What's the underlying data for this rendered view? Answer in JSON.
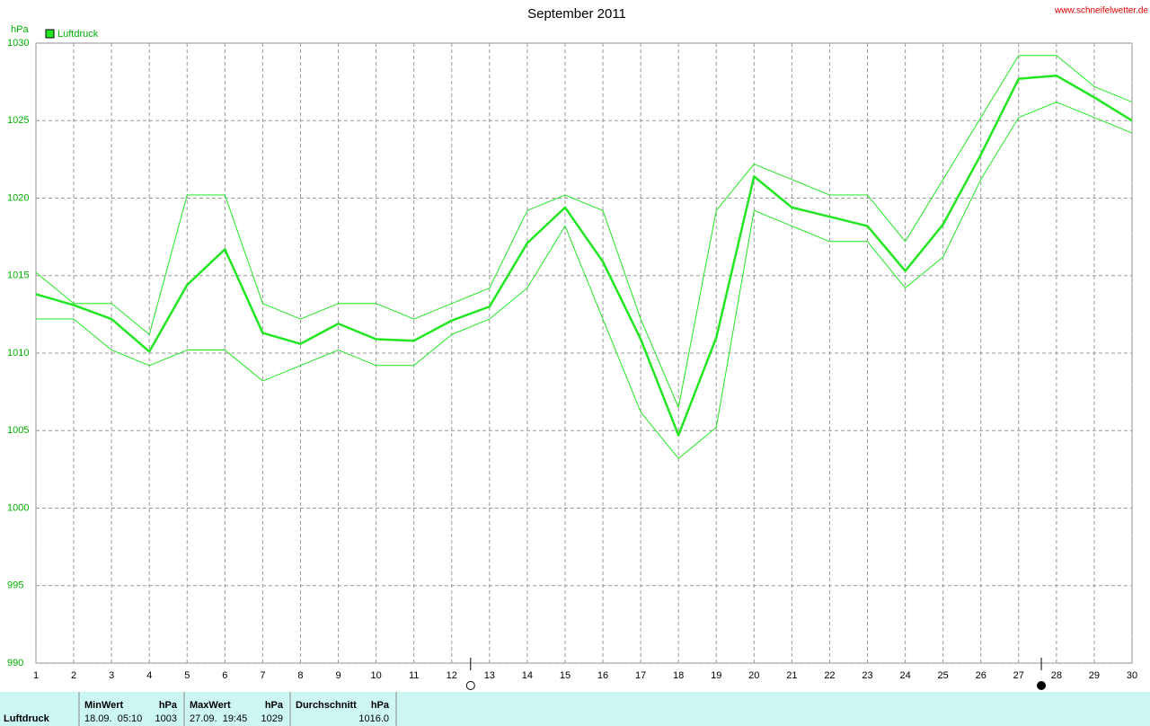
{
  "chart_data": {
    "type": "line",
    "title": "September 2011",
    "source": "www.schneifelwetter.de",
    "y_label": "hPa",
    "x": [
      1,
      2,
      3,
      4,
      5,
      6,
      7,
      8,
      9,
      10,
      11,
      12,
      13,
      14,
      15,
      16,
      17,
      18,
      19,
      20,
      21,
      22,
      23,
      24,
      25,
      26,
      27,
      28,
      29,
      30
    ],
    "xlim": [
      1,
      30
    ],
    "xticks": [
      1,
      2,
      3,
      4,
      5,
      6,
      7,
      8,
      9,
      10,
      11,
      12,
      13,
      14,
      15,
      16,
      17,
      18,
      19,
      20,
      21,
      22,
      23,
      24,
      25,
      26,
      27,
      28,
      29,
      30
    ],
    "ylim": [
      990,
      1030
    ],
    "yticks": [
      990,
      995,
      1000,
      1005,
      1010,
      1015,
      1020,
      1025,
      1030
    ],
    "grid": true,
    "legend": "top-left",
    "series": [
      {
        "name": "Luftdruck",
        "color": "#22e622",
        "width": 2.5,
        "values": [
          1013.8,
          1013.1,
          1012.2,
          1010.1,
          1014.4,
          1016.7,
          1011.3,
          1010.6,
          1011.9,
          1010.9,
          1010.8,
          1012.1,
          1013.0,
          1017.1,
          1019.4,
          1015.9,
          1010.9,
          1004.7,
          1011.0,
          1021.4,
          1019.4,
          1018.8,
          1018.2,
          1015.3,
          1018.3,
          1022.8,
          1027.7,
          1027.9,
          1026.5,
          1025.0
        ]
      },
      {
        "color": "#22e622",
        "width": 1,
        "values": [
          1015.2,
          1013.2,
          1013.2,
          1011.2,
          1020.2,
          1020.2,
          1013.2,
          1012.2,
          1013.2,
          1013.2,
          1012.2,
          1013.2,
          1014.2,
          1019.2,
          1020.2,
          1019.2,
          1012.2,
          1006.5,
          1019.2,
          1022.2,
          1021.2,
          1020.2,
          1020.2,
          1017.2,
          1021.2,
          1025.2,
          1029.2,
          1029.2,
          1027.2,
          1026.2
        ]
      },
      {
        "color": "#22e622",
        "width": 1,
        "values": [
          1012.2,
          1012.2,
          1010.2,
          1009.2,
          1010.2,
          1010.2,
          1008.2,
          1009.2,
          1010.2,
          1009.2,
          1009.2,
          1011.2,
          1012.2,
          1014.2,
          1018.2,
          1012.2,
          1006.2,
          1003.2,
          1005.2,
          1019.2,
          1018.2,
          1017.2,
          1017.2,
          1014.2,
          1016.2,
          1021.2,
          1025.2,
          1026.2,
          1025.2,
          1024.2
        ]
      }
    ],
    "markers": [
      {
        "x": 12.5,
        "fill": "#ffffff"
      },
      {
        "x": 27.6,
        "fill": "#000000"
      }
    ]
  },
  "table": {
    "row_label": "Luftdruck",
    "columns": [
      {
        "header": "MinWert",
        "unit": "hPa",
        "time": "18.09.  05:10",
        "value": "1003"
      },
      {
        "header": "MaxWert",
        "unit": "hPa",
        "time": "27.09.  19:45",
        "value": "1029"
      },
      {
        "header": "Durchschnitt",
        "unit": "hPa",
        "value": "1016.0"
      }
    ]
  }
}
